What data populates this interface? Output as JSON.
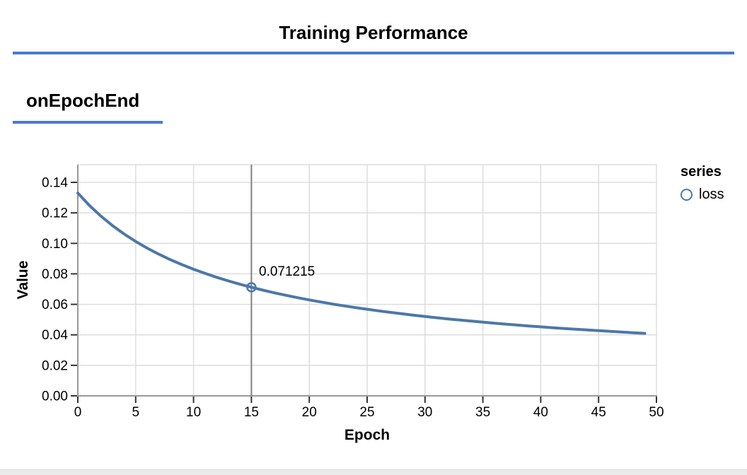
{
  "header": {
    "title": "Training Performance"
  },
  "section": {
    "title": "onEpochEnd"
  },
  "colors": {
    "accent": "#487ad6",
    "series": "#4c78a8",
    "rule": "#808080",
    "grid": "#dddddd",
    "axis_domain": "#999999",
    "tick": "#333333",
    "label": "#000000",
    "scrollbar_track": "#ebebeb",
    "scrollbar_edge": "#d9d9d9"
  },
  "chart_data": {
    "type": "line",
    "title": "",
    "xlabel": "Epoch",
    "ylabel": "Value",
    "grid": true,
    "x_axis": {
      "label": "Epoch",
      "lim": [
        0,
        50
      ],
      "ticks": [
        0,
        5,
        10,
        15,
        20,
        25,
        30,
        35,
        40,
        45,
        50
      ]
    },
    "y_axis": {
      "label": "Value",
      "lim": [
        0,
        0.15
      ],
      "tick_values": [
        0,
        0.02,
        0.04,
        0.06,
        0.08,
        0.1,
        0.12,
        0.14
      ],
      "tick_labels": [
        "0.00",
        "0.02",
        "0.04",
        "0.06",
        "0.08",
        "0.10",
        "0.12",
        "0.14"
      ]
    },
    "legend": {
      "title": "series",
      "position": "right",
      "entries": [
        {
          "label": "loss",
          "color": "#4c78a8",
          "symbol": "open-circle"
        }
      ]
    },
    "highlight": {
      "epoch": 15,
      "value": 0.071215,
      "label": "0.071215"
    },
    "series": [
      {
        "name": "loss",
        "color": "#4c78a8",
        "points": [
          [
            0,
            0.133
          ],
          [
            1,
            0.12489
          ],
          [
            2,
            0.11783
          ],
          [
            3,
            0.11163
          ],
          [
            4,
            0.10614
          ],
          [
            5,
            0.10124
          ],
          [
            6,
            0.09685
          ],
          [
            7,
            0.09289
          ],
          [
            8,
            0.08929
          ],
          [
            9,
            0.08602
          ],
          [
            10,
            0.08302
          ],
          [
            11,
            0.08027
          ],
          [
            12,
            0.07773
          ],
          [
            13,
            0.07539
          ],
          [
            14,
            0.07322
          ],
          [
            15,
            0.071215
          ],
          [
            16,
            0.06931
          ],
          [
            17,
            0.06755
          ],
          [
            18,
            0.06591
          ],
          [
            19,
            0.06436
          ],
          [
            20,
            0.06291
          ],
          [
            21,
            0.06154
          ],
          [
            22,
            0.06024
          ],
          [
            23,
            0.05902
          ],
          [
            24,
            0.05787
          ],
          [
            25,
            0.05677
          ],
          [
            26,
            0.05573
          ],
          [
            27,
            0.05474
          ],
          [
            28,
            0.0538
          ],
          [
            29,
            0.0529
          ],
          [
            30,
            0.05205
          ],
          [
            31,
            0.05123
          ],
          [
            32,
            0.05045
          ],
          [
            33,
            0.0497
          ],
          [
            34,
            0.04898
          ],
          [
            35,
            0.0483
          ],
          [
            36,
            0.04764
          ],
          [
            37,
            0.04701
          ],
          [
            38,
            0.0464
          ],
          [
            39,
            0.04581
          ],
          [
            40,
            0.04525
          ],
          [
            41,
            0.04471
          ],
          [
            42,
            0.04418
          ],
          [
            43,
            0.04368
          ],
          [
            44,
            0.04319
          ],
          [
            45,
            0.04272
          ],
          [
            46,
            0.04227
          ],
          [
            47,
            0.04183
          ],
          [
            48,
            0.0414
          ],
          [
            49,
            0.04099
          ]
        ]
      }
    ]
  }
}
